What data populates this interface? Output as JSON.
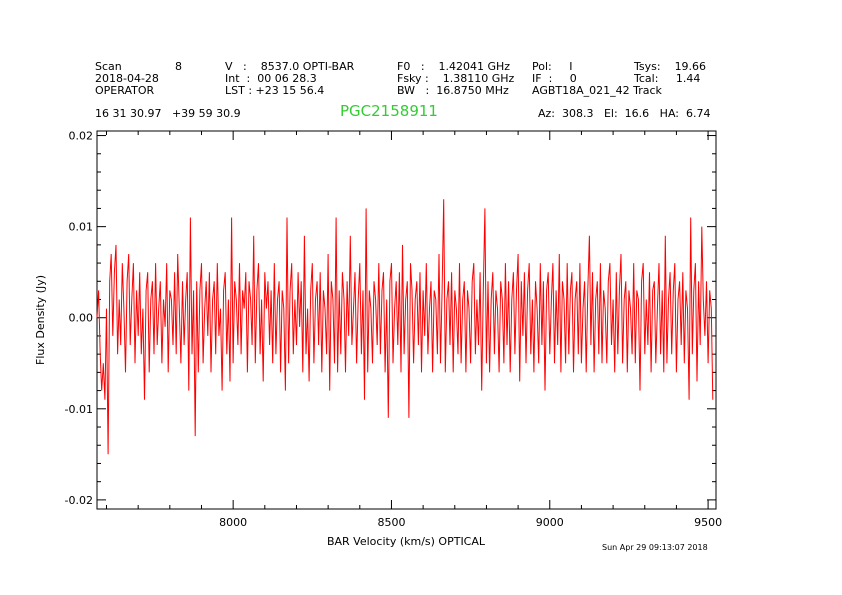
{
  "header": {
    "scan_label": "Scan",
    "scan_value": "8",
    "date": "2018-04-28",
    "observer": "OPERATOR",
    "v_line": "V   :    8537.0 OPTI-BAR",
    "int_line": "Int  :  00 06 28.3",
    "lst_line": "LST : +23 15 56.4",
    "f0_line": "F0   :    1.42041 GHz",
    "fsky_line": "Fsky :    1.38110 GHz",
    "bw_line": "BW   :  16.8750 MHz",
    "pol_line": "Pol:     I",
    "if_line": "IF  :     0",
    "project_line": "AGBT18A_021_42 Track",
    "tsys_line": "Tsys:    19.66",
    "tcal_line": "Tcal:     1.44",
    "coords": "16 31 30.97   +39 59 30.9",
    "source": "PGC2158911",
    "azelha": "Az:  308.3   El:  16.6   HA:  6.74"
  },
  "timestamp": "Sun Apr 29 09:13:07 2018",
  "chart_data": {
    "type": "line",
    "xlabel": "BAR Velocity (km/s) OPTICAL",
    "ylabel": "Flux Density (Jy)",
    "xlim": [
      7570,
      9525
    ],
    "ylim": [
      -0.021,
      0.0205
    ],
    "xticks": [
      8000,
      8500,
      9000,
      9500
    ],
    "yticks": [
      -0.02,
      -0.01,
      0.0,
      0.01,
      0.02
    ],
    "ytick_labels": [
      "-0.02",
      "-0.01",
      "0.00",
      "0.01",
      "0.02"
    ],
    "line_color": "#ff0000",
    "grid": false,
    "series": [
      {
        "x_start": 7570,
        "x_step": 5,
        "values": [
          0.0,
          0.003,
          -0.004,
          -0.008,
          -0.005,
          -0.009,
          0.001,
          -0.015,
          0.004,
          0.007,
          -0.002,
          0.005,
          0.008,
          -0.004,
          0.002,
          -0.003,
          0.006,
          0.001,
          -0.006,
          0.004,
          0.007,
          -0.003,
          0.002,
          0.006,
          -0.005,
          0.003,
          -0.002,
          0.005,
          -0.004,
          0.001,
          -0.009,
          0.003,
          0.005,
          -0.006,
          0.002,
          0.004,
          -0.004,
          0.006,
          -0.003,
          0.001,
          0.004,
          -0.005,
          0.002,
          -0.001,
          0.006,
          -0.006,
          0.003,
          0.002,
          -0.003,
          0.005,
          -0.004,
          0.007,
          0.001,
          -0.005,
          0.004,
          -0.003,
          0.002,
          0.005,
          -0.008,
          0.011,
          -0.004,
          0.003,
          -0.013,
          0.004,
          -0.006,
          0.003,
          0.006,
          -0.005,
          0.001,
          0.004,
          -0.002,
          0.005,
          -0.006,
          0.002,
          0.004,
          -0.004,
          0.006,
          -0.002,
          0.001,
          -0.008,
          0.003,
          0.005,
          -0.004,
          0.002,
          -0.007,
          0.011,
          -0.005,
          0.004,
          0.002,
          -0.003,
          0.006,
          -0.004,
          0.003,
          0.001,
          0.005,
          -0.006,
          0.004,
          0.002,
          -0.003,
          0.009,
          -0.005,
          0.003,
          0.006,
          -0.004,
          0.002,
          -0.007,
          0.005,
          0.001,
          0.004,
          -0.003,
          0.003,
          -0.005,
          0.006,
          -0.004,
          0.002,
          0.004,
          -0.006,
          0.003,
          0.001,
          -0.008,
          0.011,
          -0.005,
          0.003,
          0.006,
          -0.004,
          0.002,
          -0.003,
          0.005,
          -0.001,
          0.004,
          -0.006,
          0.009,
          -0.004,
          0.001,
          -0.007,
          0.003,
          0.006,
          -0.005,
          0.002,
          0.004,
          -0.003,
          0.005,
          -0.006,
          0.003,
          0.001,
          -0.004,
          0.007,
          -0.008,
          0.004,
          0.002,
          -0.005,
          0.011,
          -0.006,
          0.003,
          -0.004,
          0.005,
          0.002,
          -0.006,
          0.004,
          -0.002,
          0.009,
          -0.003,
          0.001,
          0.005,
          -0.005,
          0.002,
          0.006,
          -0.004,
          0.003,
          -0.009,
          0.012,
          -0.006,
          0.003,
          0.001,
          -0.005,
          0.004,
          0.002,
          -0.003,
          0.006,
          -0.004,
          0.003,
          0.005,
          -0.006,
          0.002,
          -0.011,
          0.004,
          0.006,
          -0.005,
          0.001,
          0.004,
          -0.003,
          0.005,
          -0.006,
          0.008,
          -0.004,
          0.002,
          0.004,
          -0.011,
          0.006,
          0.003,
          -0.005,
          0.002,
          0.004,
          -0.003,
          0.005,
          -0.006,
          0.003,
          -0.002,
          0.006,
          -0.004,
          0.001,
          0.004,
          -0.006,
          0.003,
          0.002,
          -0.004,
          0.007,
          -0.005,
          0.003,
          0.013,
          -0.006,
          0.002,
          0.004,
          -0.003,
          0.005,
          -0.006,
          0.003,
          0.001,
          -0.004,
          0.006,
          -0.005,
          0.002,
          0.004,
          -0.006,
          0.003,
          0.001,
          -0.005,
          0.004,
          0.006,
          -0.004,
          0.002,
          -0.003,
          0.005,
          -0.008,
          0.003,
          0.012,
          -0.005,
          0.004,
          -0.006,
          0.002,
          0.005,
          -0.004,
          0.003,
          0.001,
          -0.006,
          0.004,
          0.002,
          -0.005,
          0.006,
          -0.003,
          0.004,
          -0.006,
          0.002,
          0.005,
          -0.004,
          0.003,
          0.007,
          -0.007,
          0.004,
          -0.002,
          0.005,
          -0.005,
          0.003,
          0.006,
          -0.004,
          0.002,
          -0.006,
          0.004,
          0.001,
          -0.005,
          0.006,
          -0.003,
          0.004,
          -0.008,
          0.003,
          0.005,
          -0.004,
          0.002,
          0.006,
          -0.005,
          0.003,
          -0.003,
          0.007,
          -0.006,
          0.004,
          0.002,
          -0.005,
          0.006,
          -0.004,
          0.003,
          0.005,
          -0.006,
          0.002,
          0.004,
          -0.004,
          0.006,
          -0.005,
          0.001,
          0.004,
          -0.006,
          0.003,
          0.009,
          -0.003,
          0.005,
          -0.006,
          0.002,
          0.004,
          -0.004,
          0.006,
          -0.005,
          0.003,
          0.001,
          -0.005,
          0.004,
          0.006,
          -0.003,
          0.002,
          -0.006,
          0.005,
          -0.004,
          0.003,
          0.007,
          -0.005,
          0.002,
          0.004,
          -0.006,
          0.003,
          0.001,
          -0.004,
          0.006,
          -0.005,
          0.003,
          0.002,
          -0.008,
          0.004,
          0.006,
          -0.004,
          0.002,
          -0.003,
          0.005,
          -0.006,
          0.003,
          0.004,
          -0.005,
          0.001,
          0.006,
          -0.004,
          0.003,
          -0.006,
          0.009,
          -0.005,
          0.002,
          0.005,
          -0.004,
          0.003,
          0.006,
          -0.006,
          0.002,
          0.004,
          -0.003,
          0.005,
          -0.005,
          0.003,
          0.001,
          -0.009,
          0.011,
          -0.004,
          0.003,
          0.006,
          -0.007,
          0.004,
          -0.003,
          0.01,
          0.002,
          -0.002,
          0.004,
          -0.005,
          0.003,
          0.001,
          -0.009
        ]
      }
    ]
  }
}
